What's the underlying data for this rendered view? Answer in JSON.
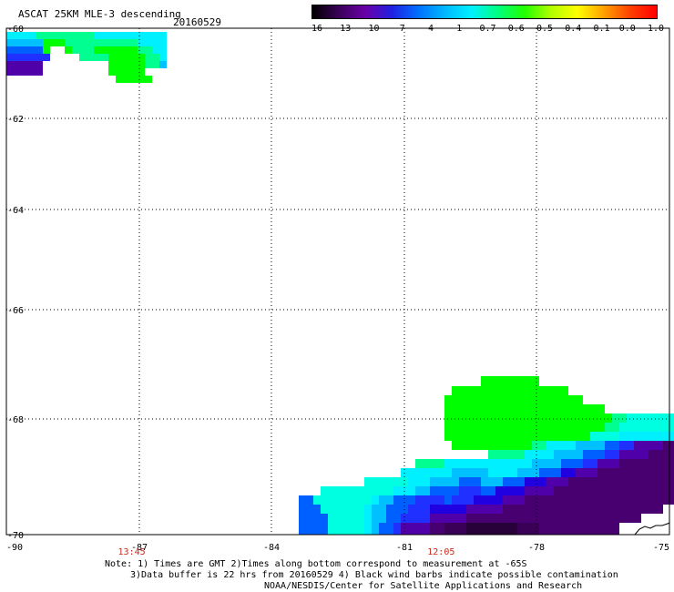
{
  "header": {
    "title": "ASCAT 25KM MLE-3 descending",
    "date": "20160529"
  },
  "colorbar": {
    "tick_labels": [
      "-16",
      "-13",
      "-10",
      "-7",
      "-4",
      "-1",
      "-0.7",
      "-0.6",
      "-0.5",
      "-0.4",
      "-0.1",
      "0.0",
      "1.0"
    ],
    "colors": [
      "#000000",
      "#3a0058",
      "#6a00a8",
      "#2020e0",
      "#0070ff",
      "#00b8ff",
      "#00f0ff",
      "#00ff80",
      "#20ff00",
      "#b0ff00",
      "#ffff00",
      "#ffa000",
      "#ff4000",
      "#ff0000"
    ]
  },
  "map": {
    "lon_labels": [
      "-90",
      "-87",
      "-84",
      "-81",
      "-78",
      "-75"
    ],
    "lat_labels": [
      "-60",
      "-62",
      "-64",
      "-66",
      "-68",
      "-70"
    ],
    "time_labels": [
      {
        "text": "13:45",
        "lon": -87
      },
      {
        "text": "12:05",
        "lon": -80
      }
    ],
    "lon_range": [
      -90,
      -75
    ],
    "lat_range": [
      -70,
      -60
    ]
  },
  "note": {
    "line1": "Note: 1) Times are GMT 2)Times along bottom correspond to measurement at -65S",
    "line2": "3)Data buffer is 22 hrs from 20160529 4) Black wind barbs indicate possible contamination",
    "line3": "NOAA/NESDIS/Center for Satellite Applications and Research"
  }
}
